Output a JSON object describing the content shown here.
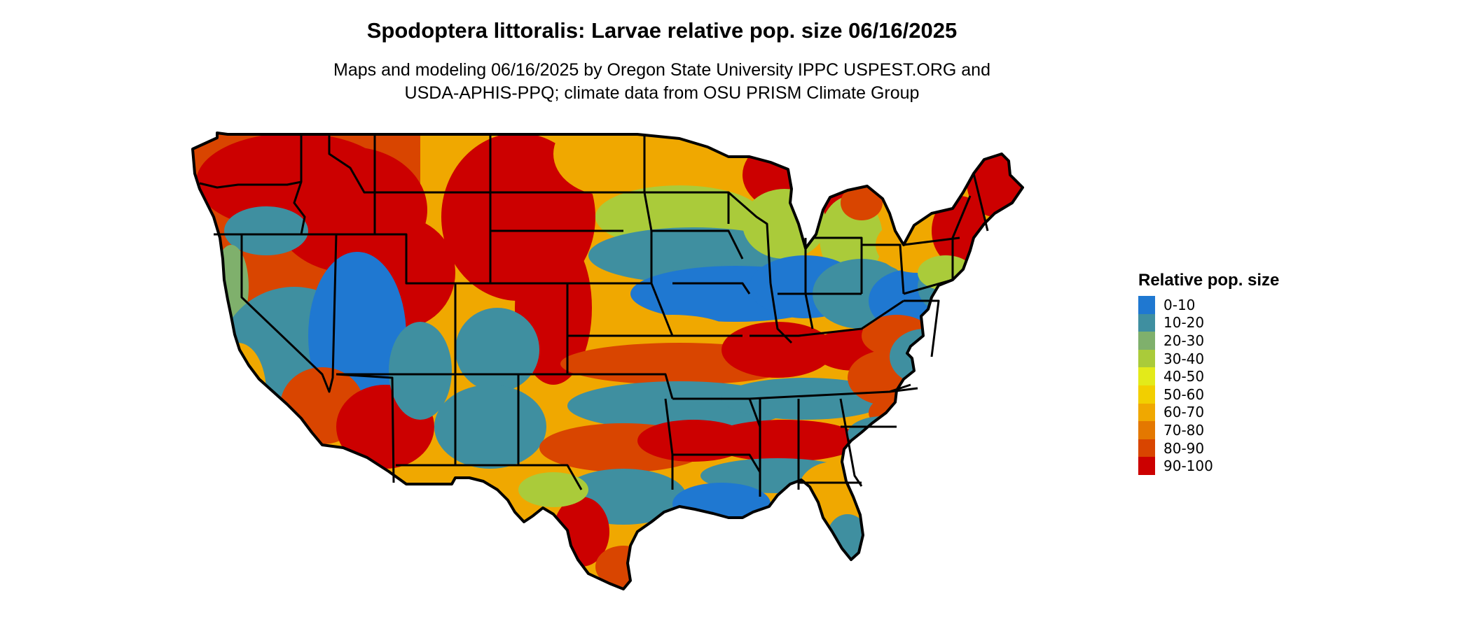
{
  "title": "Spodoptera littoralis: Larvae relative pop. size 06/16/2025",
  "subtitle_line1": "Maps and modeling 06/16/2025 by Oregon State University IPPC USPEST.ORG and",
  "subtitle_line2": "USDA-APHIS-PPQ; climate data from OSU PRISM Climate Group",
  "legend": {
    "title": "Relative pop. size",
    "classes": [
      {
        "label": "0-10",
        "color": "#1f78d1"
      },
      {
        "label": "10-20",
        "color": "#3f8fa0"
      },
      {
        "label": "20-30",
        "color": "#7fb06c"
      },
      {
        "label": "30-40",
        "color": "#aacb3a"
      },
      {
        "label": "40-50",
        "color": "#e3ea1a"
      },
      {
        "label": "50-60",
        "color": "#f2cf00"
      },
      {
        "label": "60-70",
        "color": "#f0a800"
      },
      {
        "label": "70-80",
        "color": "#e47800"
      },
      {
        "label": "80-90",
        "color": "#d94500"
      },
      {
        "label": "90-100",
        "color": "#cc0000"
      }
    ]
  },
  "map": {
    "region": "contiguous-us",
    "state_boundaries": true,
    "boundary_color": "#000000"
  }
}
